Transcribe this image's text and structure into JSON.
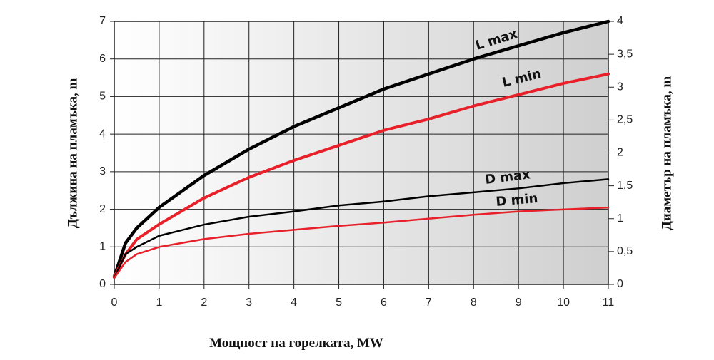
{
  "chart_data": {
    "type": "line",
    "x_label": "Мощност на горелката, MW",
    "y_label": "Дължина на пламъка, m",
    "y2_label": "Диаметър на пламъка, m",
    "x": [
      0,
      0.25,
      0.5,
      1,
      2,
      3,
      4,
      5,
      6,
      7,
      8,
      9,
      10,
      11
    ],
    "xlim": [
      0,
      11
    ],
    "xticks": [
      0,
      1,
      2,
      3,
      4,
      5,
      6,
      7,
      8,
      9,
      10,
      11
    ],
    "ylim": [
      0,
      7
    ],
    "yticks": [
      0,
      1,
      2,
      3,
      4,
      5,
      6,
      7
    ],
    "y2lim": [
      0,
      4
    ],
    "y2ticks": [
      0,
      {
        "value": 0.5,
        "label": "0,5"
      },
      1,
      {
        "value": 1.5,
        "label": "1,5"
      },
      2,
      {
        "value": 2.5,
        "label": "2,5"
      },
      3,
      {
        "value": 3.5,
        "label": "3,5"
      },
      4
    ],
    "grid": true,
    "series": [
      {
        "name": "L max",
        "color": "#000000",
        "values": [
          0.2,
          1.1,
          1.5,
          2.05,
          2.9,
          3.6,
          4.2,
          4.7,
          5.2,
          5.6,
          6.0,
          6.35,
          6.7,
          7.0
        ]
      },
      {
        "name": "L min",
        "color": "#e8202a",
        "values": [
          0.2,
          0.8,
          1.2,
          1.6,
          2.3,
          2.85,
          3.3,
          3.7,
          4.1,
          4.4,
          4.75,
          5.05,
          5.35,
          5.6
        ]
      },
      {
        "name": "D max",
        "color": "#000000",
        "axis": "y2",
        "values": [
          0.1,
          0.46,
          0.57,
          0.74,
          0.91,
          1.03,
          1.11,
          1.2,
          1.26,
          1.34,
          1.4,
          1.46,
          1.54,
          1.6
        ]
      },
      {
        "name": "D min",
        "color": "#e8202a",
        "axis": "y2",
        "values": [
          0.1,
          0.34,
          0.46,
          0.57,
          0.69,
          0.77,
          0.83,
          0.89,
          0.94,
          1.0,
          1.06,
          1.11,
          1.14,
          1.17
        ]
      }
    ]
  }
}
